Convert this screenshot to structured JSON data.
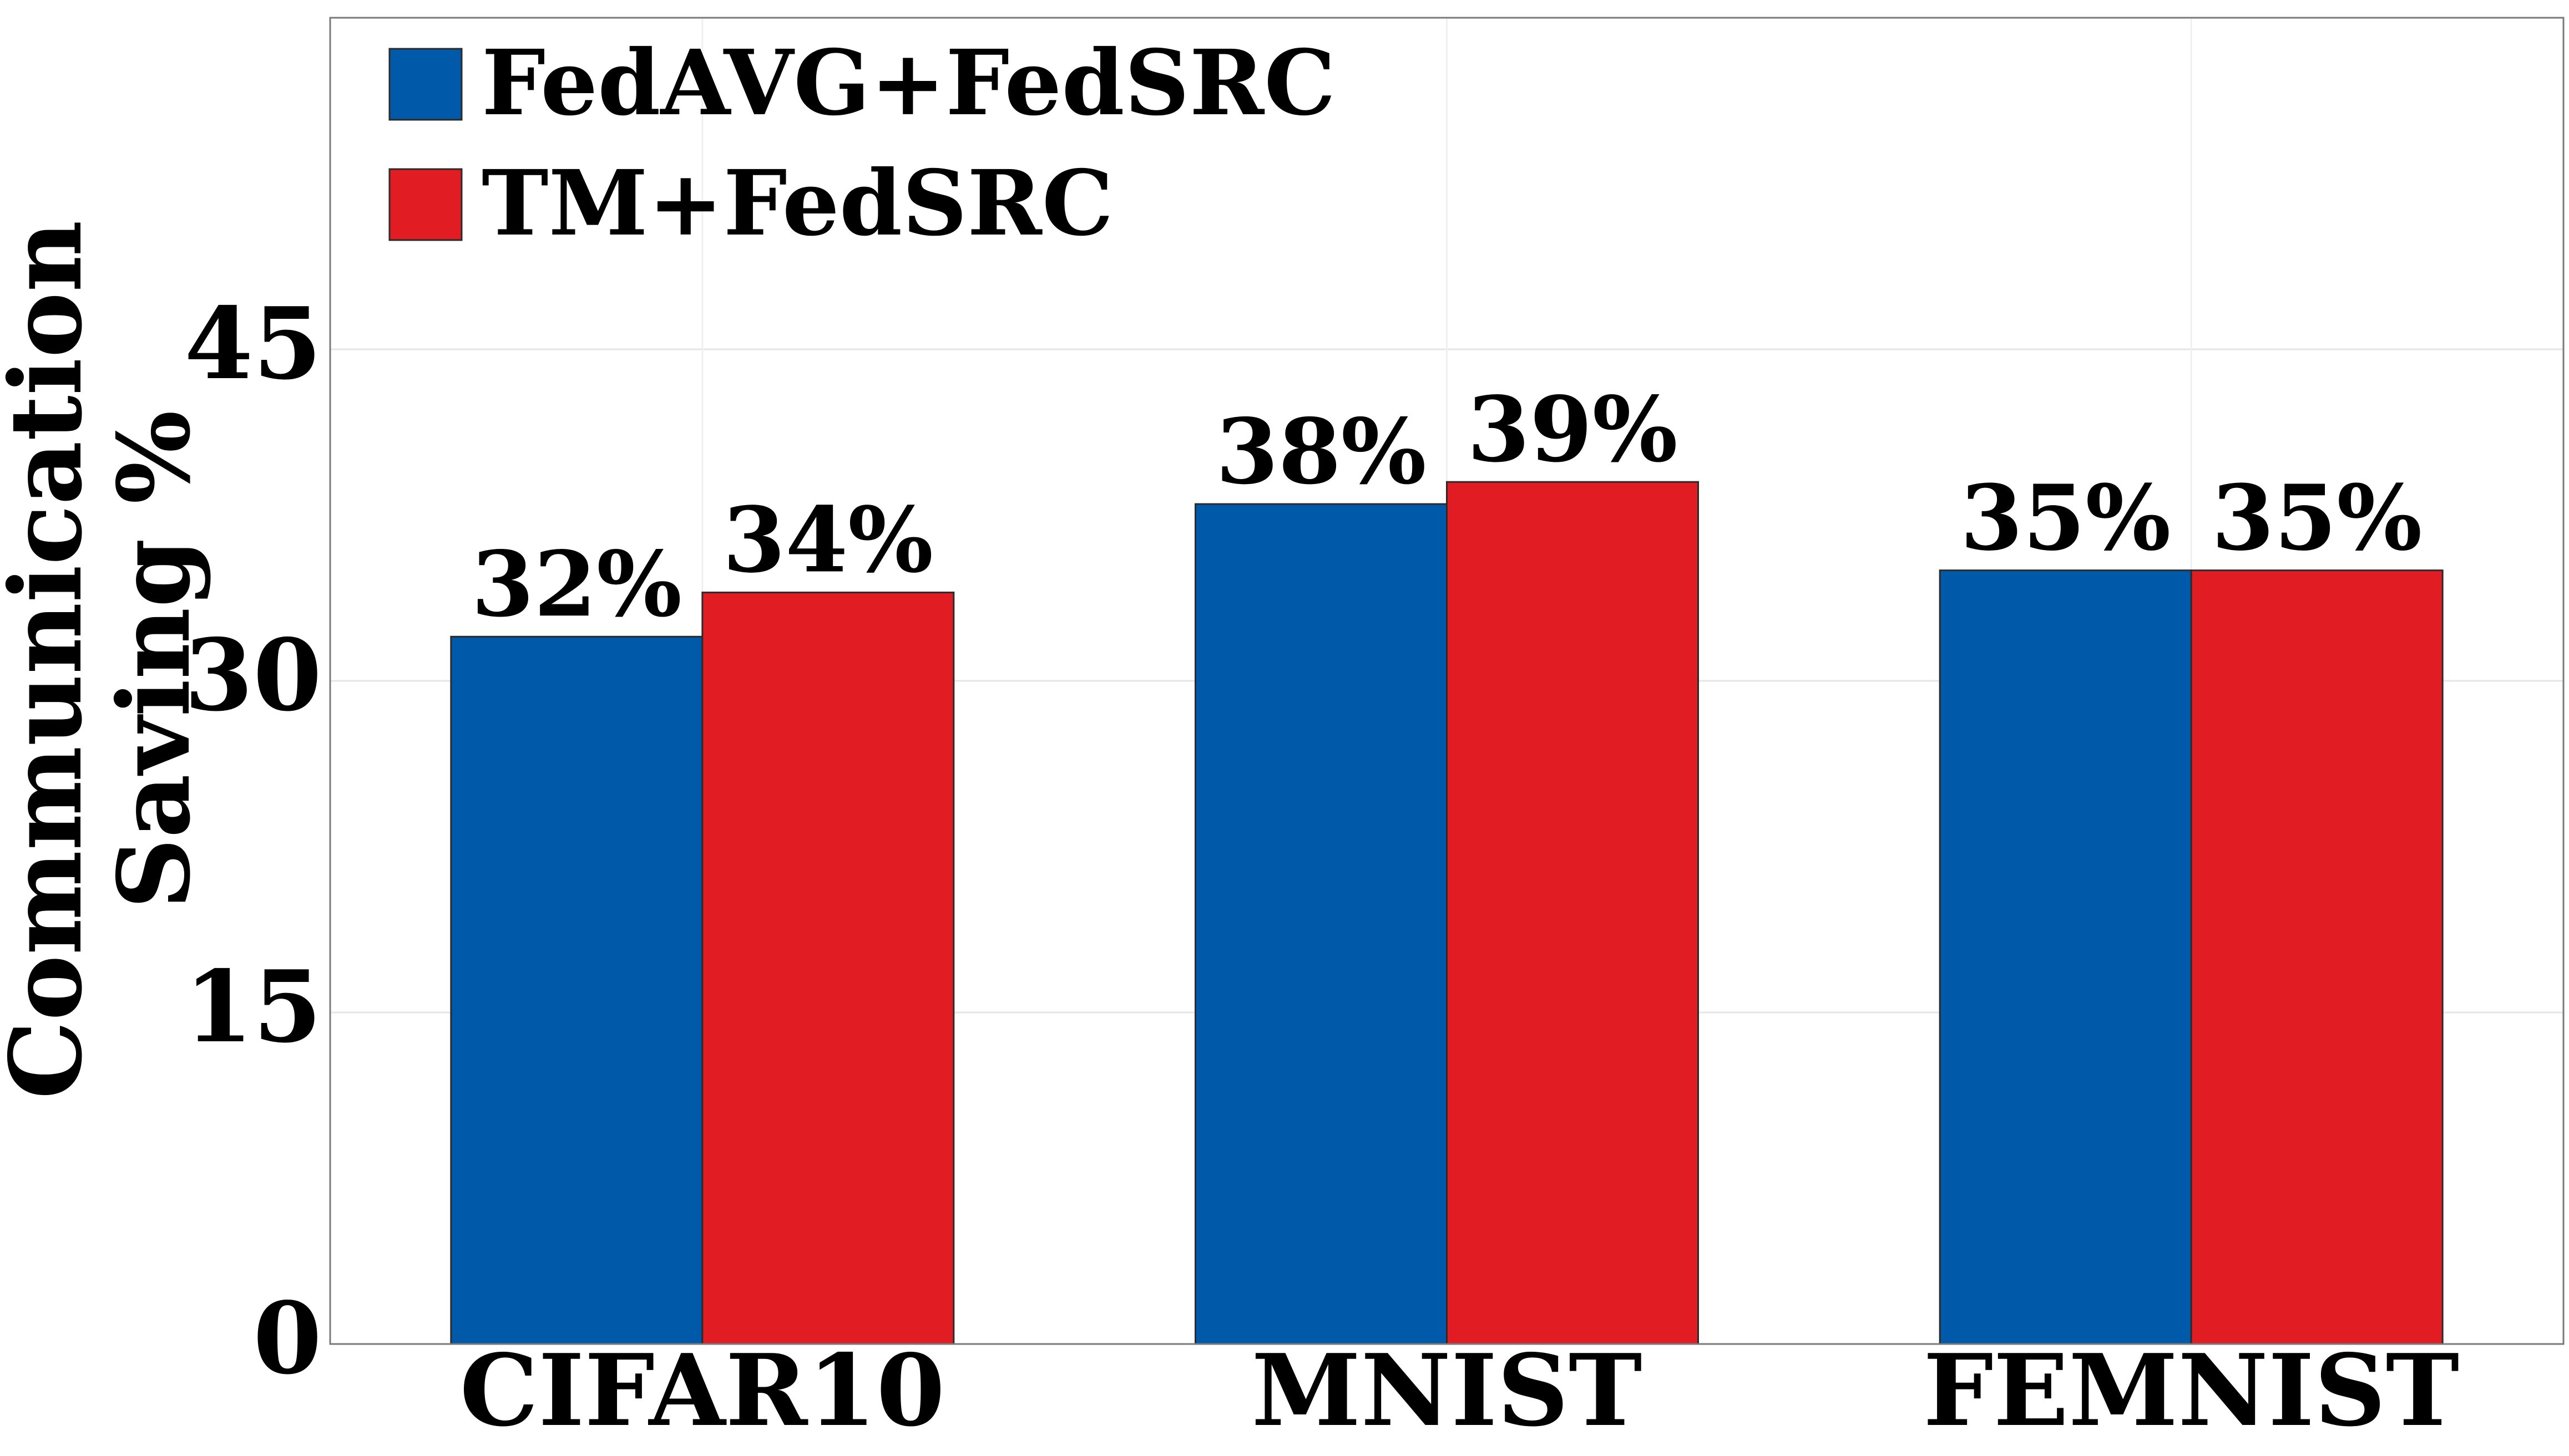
{
  "chart_data": {
    "type": "bar",
    "title": "",
    "categories": [
      "CIFAR10",
      "MNIST",
      "FEMNIST"
    ],
    "series": [
      {
        "name": "FedAVG+FedSRC",
        "color": "#005AA9",
        "values": [
          32,
          38,
          35
        ],
        "labels": [
          "32%",
          "38%",
          "35%"
        ]
      },
      {
        "name": "TM+FedSRC",
        "color": "#E21C23",
        "values": [
          34,
          39,
          35
        ],
        "labels": [
          "34%",
          "39%",
          "35%"
        ]
      }
    ],
    "ylabel_lines": [
      "Communication",
      "Saving %"
    ],
    "xlabel": "",
    "ylim": [
      0,
      60
    ],
    "yticks": [
      0,
      15,
      30,
      45
    ],
    "ytick_labels": [
      "0",
      "15",
      "30",
      "45"
    ],
    "grid": true,
    "legend_position": "top-left"
  }
}
